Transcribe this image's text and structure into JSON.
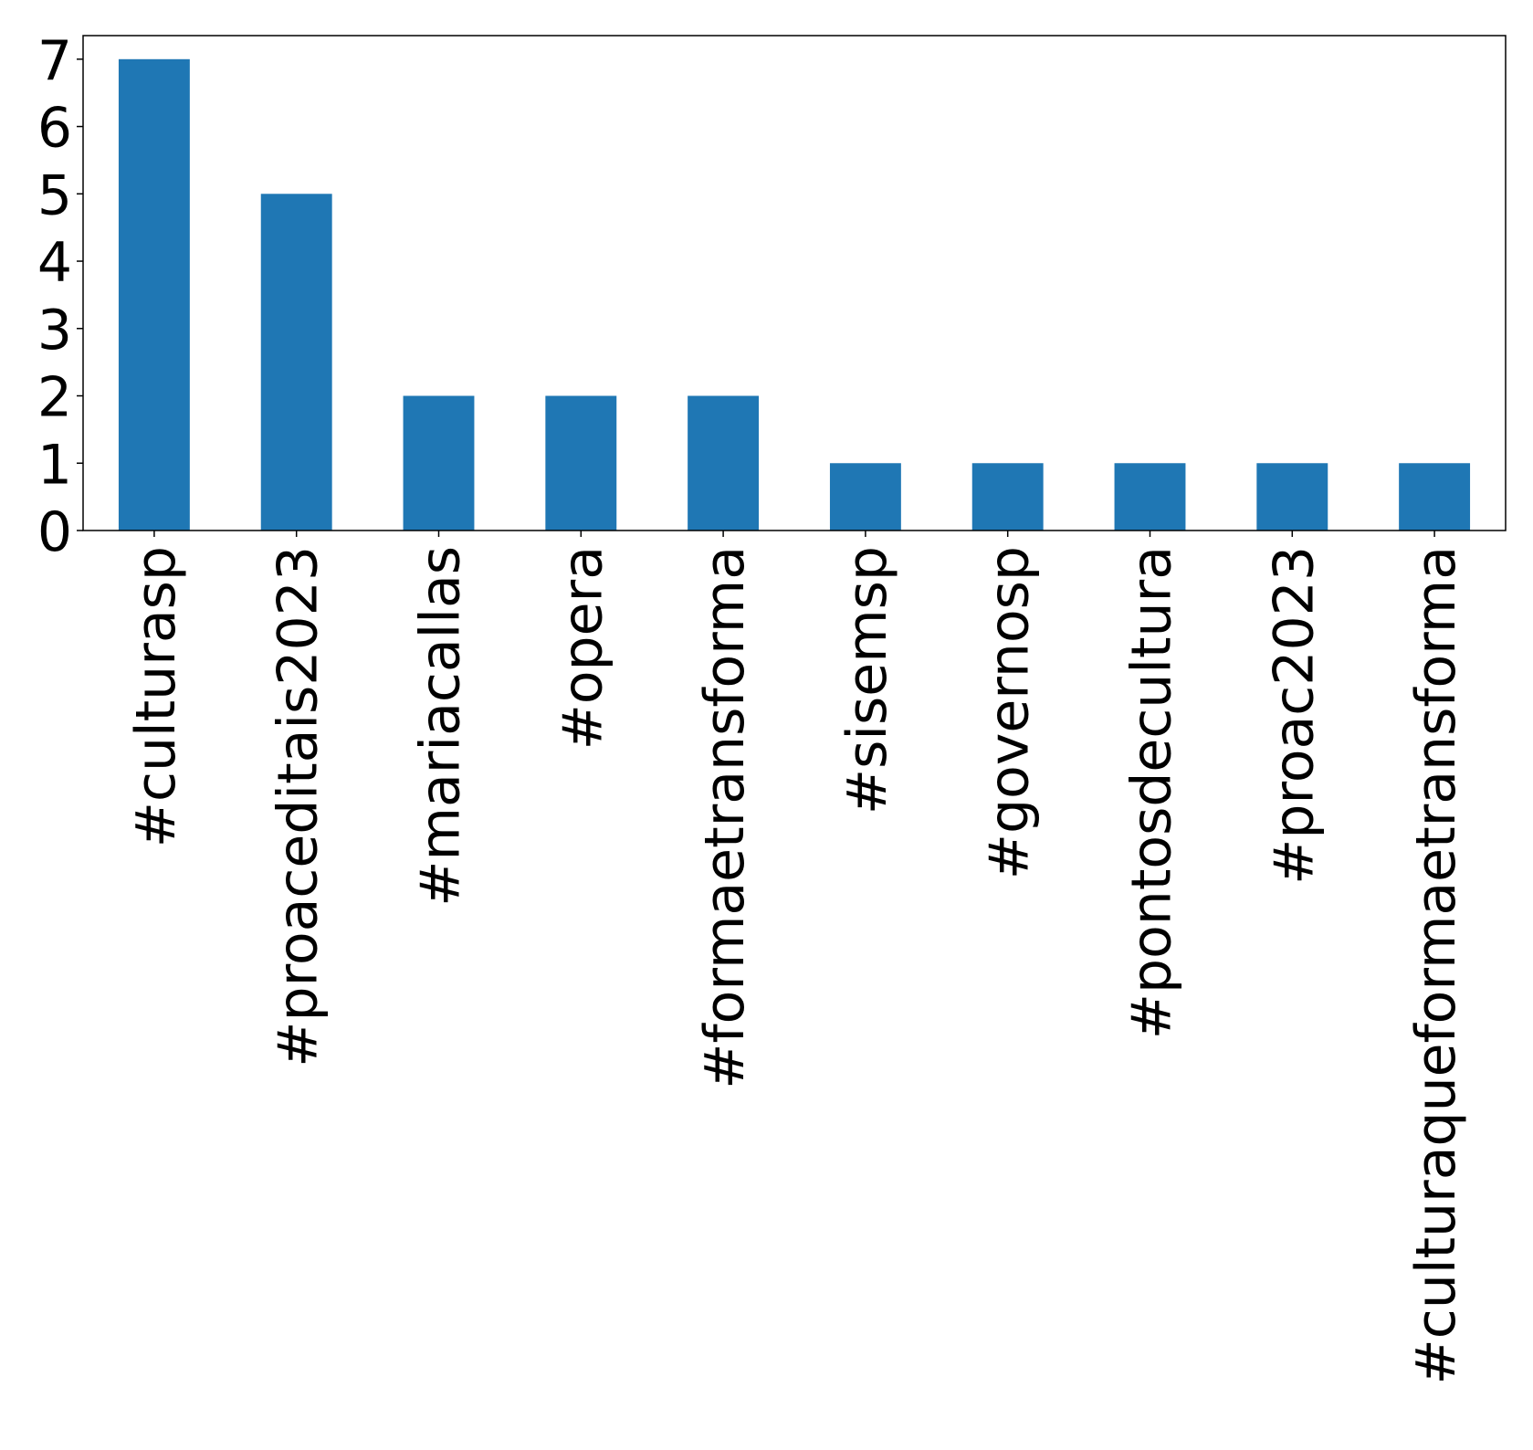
{
  "chart_data": {
    "type": "bar",
    "title": "",
    "xlabel": "",
    "ylabel": "",
    "categories": [
      "#culturasp",
      "#proaceditais2023",
      "#mariacallas",
      "#opera",
      "#formaetransforma",
      "#sisemsp",
      "#governosp",
      "#pontosdecultura",
      "#proac2023",
      "#culturaqueformaetransforma"
    ],
    "values": [
      7,
      5,
      2,
      2,
      2,
      1,
      1,
      1,
      1,
      1
    ],
    "ylim": [
      0,
      7.35
    ],
    "yticks": [
      0,
      1,
      2,
      3,
      4,
      5,
      6,
      7
    ],
    "grid": false,
    "legend": "none",
    "colors": {
      "bar": "#1f77b4",
      "axis": "#000000",
      "background": "#ffffff"
    }
  }
}
